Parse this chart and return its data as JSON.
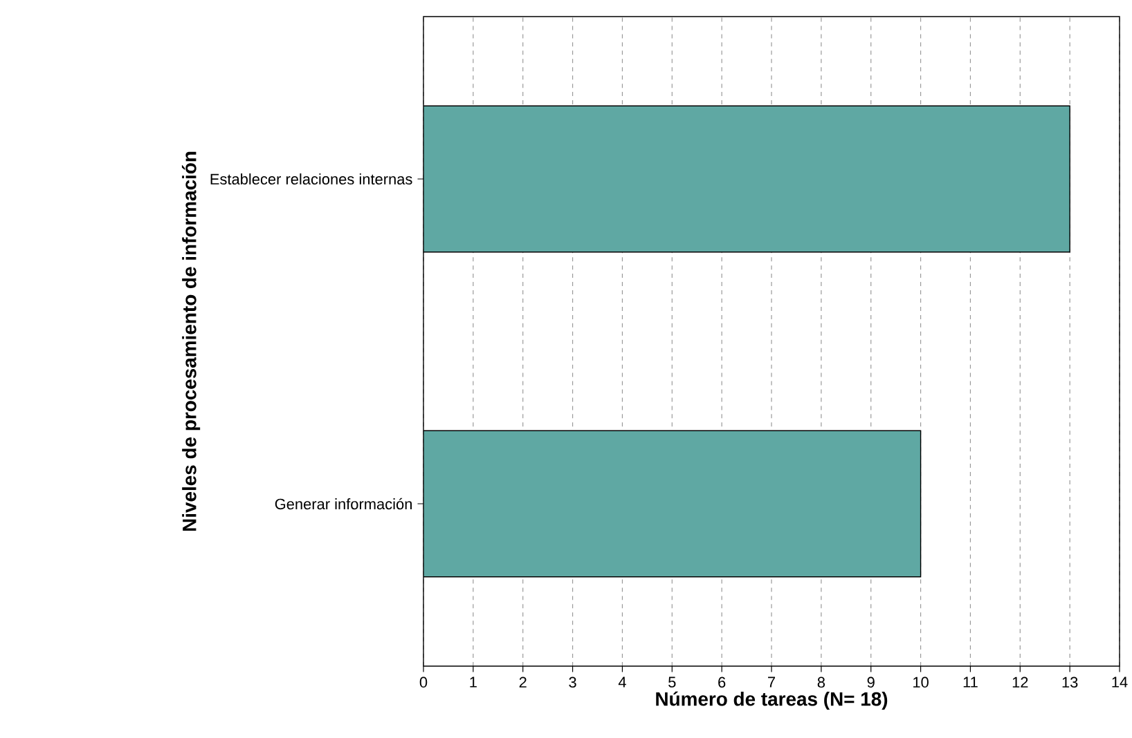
{
  "chart_data": {
    "type": "bar",
    "orientation": "horizontal",
    "categories": [
      "Establecer relaciones internas",
      "Generar información"
    ],
    "values": [
      13,
      10
    ],
    "color": "#5fa8a3",
    "xlim": [
      0,
      14
    ],
    "xticks": [
      0,
      1,
      2,
      3,
      4,
      5,
      6,
      7,
      8,
      9,
      10,
      11,
      12,
      13,
      14
    ],
    "grid": "x",
    "xlabel": "Número de tareas (N= 18)",
    "ylabel": "Niveles de procesamiento de información"
  }
}
